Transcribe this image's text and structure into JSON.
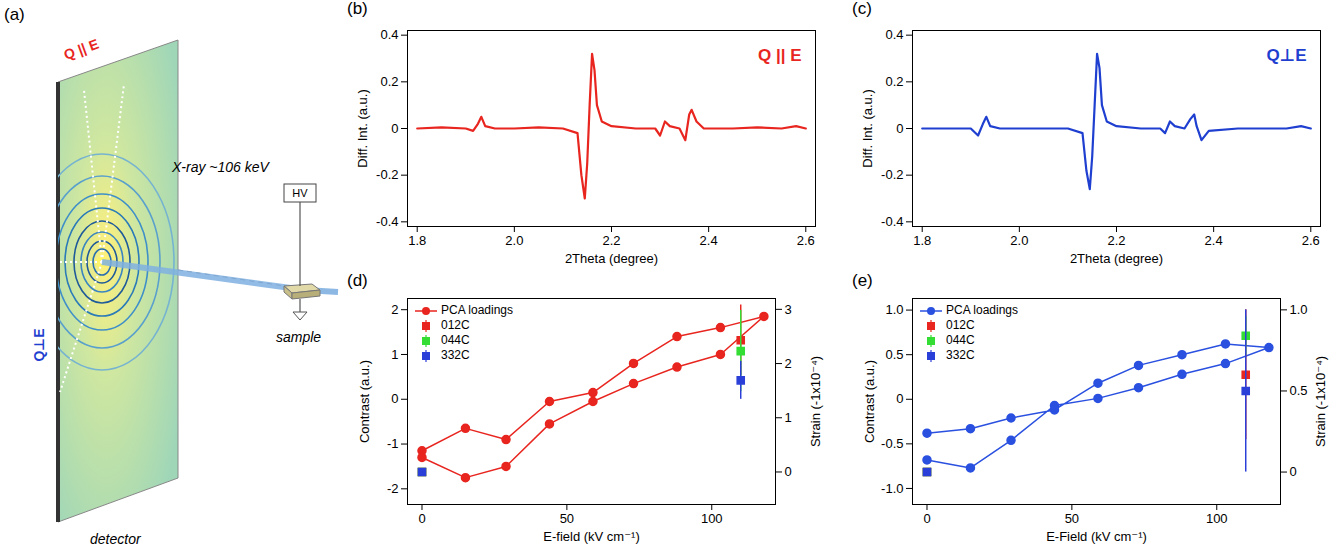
{
  "diagram": {
    "panel_label": "(a)",
    "labels": {
      "q_parallel": "Q || E",
      "q_perp": "Q⊥E",
      "xray": "X-ray ~106 keV",
      "hv": "HV",
      "sample": "sample",
      "detector": "detector"
    }
  },
  "chart_data": [
    {
      "panel_label": "(b)",
      "type": "line",
      "x_label": "2Theta (degree)",
      "y_label": "Diff. Int. (a.u.)",
      "annotation": "Q || E",
      "color": "#e8251f",
      "x": [
        1.8,
        1.85,
        1.9,
        1.915,
        1.925,
        1.932,
        1.94,
        1.96,
        2.0,
        2.05,
        2.1,
        2.13,
        2.138,
        2.145,
        2.15,
        2.155,
        2.16,
        2.165,
        2.17,
        2.18,
        2.2,
        2.25,
        2.29,
        2.3,
        2.31,
        2.32,
        2.34,
        2.352,
        2.36,
        2.365,
        2.375,
        2.39,
        2.45,
        2.5,
        2.55,
        2.58,
        2.6
      ],
      "values": [
        0,
        0.005,
        0,
        -0.01,
        0.02,
        0.05,
        0.01,
        0,
        0,
        0.005,
        0,
        -0.02,
        -0.2,
        -0.3,
        -0.15,
        0.1,
        0.32,
        0.25,
        0.1,
        0.03,
        0.01,
        0,
        0,
        -0.03,
        0.03,
        0.01,
        0,
        -0.05,
        0.06,
        0.08,
        0.03,
        0,
        0,
        0.005,
        0,
        0.01,
        0
      ],
      "xlim": [
        1.78,
        2.62
      ],
      "xticks": [
        1.8,
        {
          "value": 2,
          "label": "2.0"
        },
        2.2,
        2.4,
        2.6
      ],
      "ylim": [
        -0.42,
        0.42
      ],
      "yticks": [
        -0.4,
        -0.2,
        0,
        0.2,
        0.4
      ]
    },
    {
      "panel_label": "(c)",
      "type": "line",
      "x_label": "2Theta (degree)",
      "y_label": "Diff. Int. (a.u.)",
      "annotation": "Q⊥E",
      "color": "#1f3fd0",
      "x": [
        1.8,
        1.85,
        1.9,
        1.915,
        1.925,
        1.932,
        1.94,
        1.96,
        2.0,
        2.05,
        2.1,
        2.13,
        2.138,
        2.145,
        2.15,
        2.155,
        2.16,
        2.165,
        2.17,
        2.18,
        2.2,
        2.25,
        2.29,
        2.3,
        2.31,
        2.32,
        2.34,
        2.352,
        2.36,
        2.365,
        2.375,
        2.39,
        2.45,
        2.5,
        2.55,
        2.58,
        2.6
      ],
      "values": [
        0,
        0,
        0,
        -0.03,
        0.02,
        0.05,
        0.01,
        0,
        0,
        0,
        0,
        -0.02,
        -0.18,
        -0.26,
        -0.12,
        0.1,
        0.32,
        0.26,
        0.1,
        0.03,
        0.01,
        0,
        0,
        -0.02,
        0.03,
        0.01,
        0,
        0.04,
        0.06,
        0.01,
        -0.05,
        -0.01,
        0,
        0,
        0,
        0.01,
        0
      ],
      "xlim": [
        1.78,
        2.62
      ],
      "xticks": [
        1.8,
        {
          "value": 2,
          "label": "2.0"
        },
        2.2,
        2.4,
        2.6
      ],
      "ylim": [
        -0.42,
        0.42
      ],
      "yticks": [
        -0.4,
        -0.2,
        0,
        0.2,
        0.4
      ]
    },
    {
      "panel_label": "(d)",
      "type": "line",
      "x_label": "E-field (kV cm⁻¹)",
      "y_label": "Contrast (a.u.)",
      "y2_label": "Strain (-1x10⁻⁴)",
      "legend": "upper left",
      "xlim": [
        -5,
        122
      ],
      "xticks": [
        0,
        50,
        100
      ],
      "ylim": [
        -2.35,
        2.25
      ],
      "yticks": [
        -2,
        -1,
        0,
        1,
        2
      ],
      "y2lim": [
        -0.6,
        3.2
      ],
      "y2ticks": [
        0,
        1,
        2,
        3
      ],
      "series": [
        {
          "name": "PCA loadings",
          "type": "line",
          "marker": "circle",
          "color": "#e8251f",
          "x": [
            0,
            15,
            29,
            44,
            59,
            73,
            88,
            103,
            118,
            103,
            88,
            73,
            59,
            44,
            29,
            15,
            0
          ],
          "values": [
            -1.15,
            -0.65,
            -0.9,
            -0.05,
            0.15,
            0.8,
            1.4,
            1.6,
            1.85,
            1.0,
            0.72,
            0.35,
            -0.05,
            -0.55,
            -1.5,
            -1.75,
            -1.3
          ]
        },
        {
          "name": "012C",
          "type": "scatter",
          "marker": "square",
          "color": "#e8251f",
          "axis": "y2",
          "x": [
            0,
            110
          ],
          "values": [
            0,
            2.43
          ],
          "errors": [
            0,
            0.65
          ]
        },
        {
          "name": "044C",
          "type": "scatter",
          "marker": "square",
          "color": "#33dd33",
          "axis": "y2",
          "x": [
            0,
            110
          ],
          "values": [
            0,
            2.23
          ],
          "errors": [
            0,
            0.75
          ]
        },
        {
          "name": "332C",
          "type": "scatter",
          "marker": "square",
          "color": "#2a3fd8",
          "axis": "y2",
          "x": [
            0,
            110
          ],
          "values": [
            0,
            1.69
          ],
          "errors": [
            0,
            0.35
          ]
        }
      ]
    },
    {
      "panel_label": "(e)",
      "type": "line",
      "x_label": "E-Field (kV cm⁻¹)",
      "y_label": "Contrast (a.u.)",
      "y2_label": "Strain (-1x10⁻⁴)",
      "legend": "upper left",
      "xlim": [
        -5,
        122
      ],
      "xticks": [
        0,
        50,
        100
      ],
      "ylim": [
        -1.18,
        1.13
      ],
      "yticks": [
        {
          "value": -1,
          "label": "-1.0"
        },
        -0.5,
        0,
        0.5,
        {
          "value": 1,
          "label": "1.0"
        }
      ],
      "y2lim": [
        -0.2,
        1.07
      ],
      "y2ticks": [
        0,
        0.5,
        {
          "value": 1,
          "label": "1.0"
        }
      ],
      "series": [
        {
          "name": "PCA loadings",
          "type": "line",
          "marker": "circle",
          "color": "#2a50e0",
          "x": [
            0,
            15,
            29,
            44,
            59,
            73,
            88,
            103,
            118,
            103,
            88,
            73,
            59,
            44,
            29,
            15,
            0
          ],
          "values": [
            -0.38,
            -0.33,
            -0.21,
            -0.12,
            0.18,
            0.38,
            0.5,
            0.62,
            0.58,
            0.4,
            0.28,
            0.13,
            0.01,
            -0.07,
            -0.46,
            -0.77,
            -0.68
          ]
        },
        {
          "name": "012C",
          "type": "scatter",
          "marker": "square",
          "color": "#e8251f",
          "axis": "y2",
          "x": [
            0,
            110
          ],
          "values": [
            0,
            0.6
          ],
          "errors": [
            0,
            0.4
          ]
        },
        {
          "name": "044C",
          "type": "scatter",
          "marker": "square",
          "color": "#33dd33",
          "axis": "y2",
          "x": [
            0,
            110
          ],
          "values": [
            0,
            0.84
          ],
          "errors": [
            0,
            0.12
          ]
        },
        {
          "name": "332C",
          "type": "scatter",
          "marker": "square",
          "color": "#2a3fd8",
          "axis": "y2",
          "x": [
            0,
            110
          ],
          "values": [
            0,
            0.5
          ],
          "errors": [
            0,
            0.5
          ]
        }
      ]
    }
  ]
}
